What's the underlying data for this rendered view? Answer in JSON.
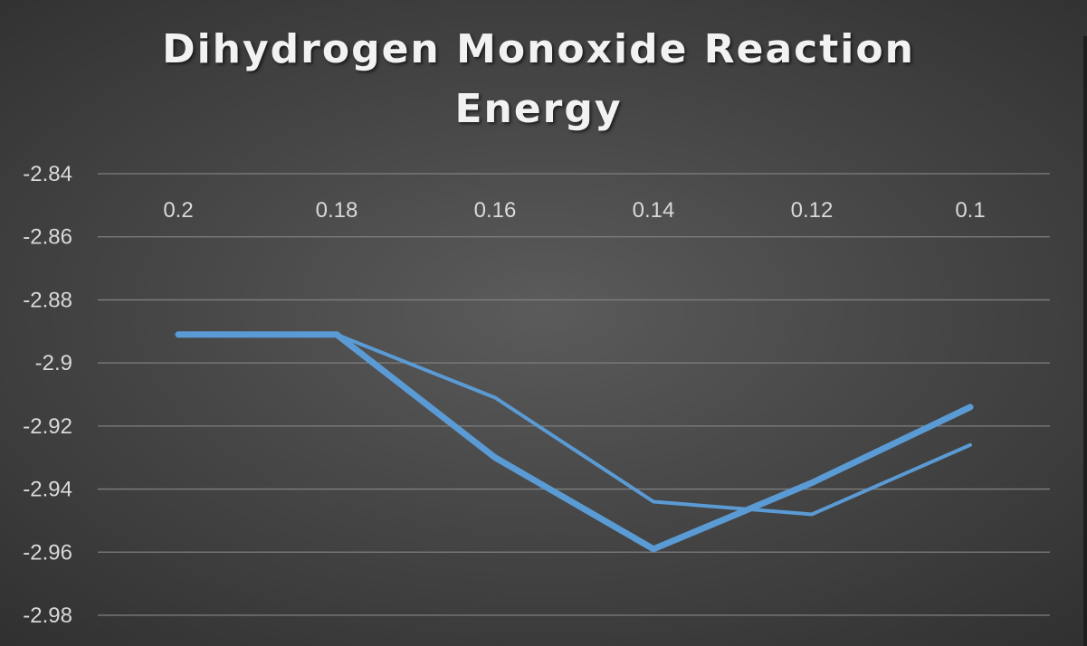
{
  "chart_data": {
    "type": "line",
    "title": "Dihydrogen Monoxide Reaction Energy",
    "categories": [
      "0.2",
      "0.18",
      "0.16",
      "0.14",
      "0.12",
      "0.1"
    ],
    "series": [
      {
        "values": [
          -2.891,
          -2.891,
          -2.93,
          -2.959,
          -2.938,
          -2.914
        ],
        "color": "#5b9bd5",
        "weight": "thick"
      },
      {
        "values": [
          -2.891,
          -2.891,
          -2.911,
          -2.944,
          -2.948,
          -2.926
        ],
        "color": "#5b9bd5",
        "weight": "thin"
      }
    ],
    "y_ticks": [
      "-2.84",
      "-2.86",
      "-2.88",
      "-2.9",
      "-2.92",
      "-2.94",
      "-2.96",
      "-2.98"
    ],
    "ylim": [
      -2.98,
      -2.84
    ],
    "x_axis_position": "top",
    "grid": true,
    "legend": "none"
  },
  "colors": {
    "background": "#474747",
    "gridline": "#7f7f7f",
    "text": "#d9d9d9",
    "series": "#5b9bd5"
  }
}
